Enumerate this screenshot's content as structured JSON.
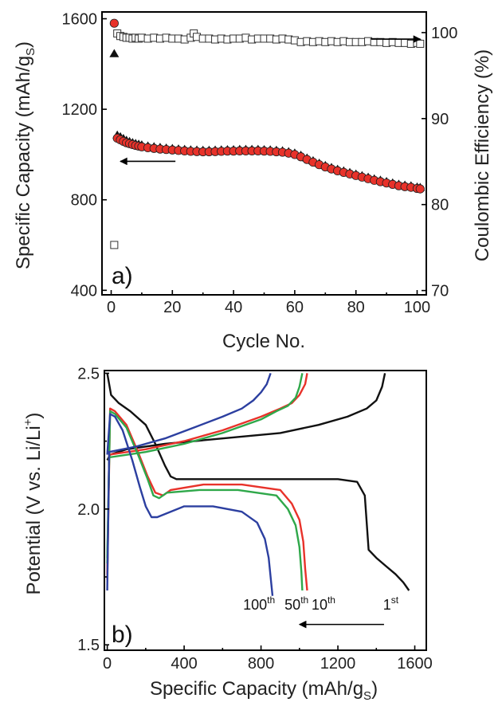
{
  "chart_data": [
    {
      "type": "scatter",
      "panel_label": "a)",
      "xlabel": "Cycle No.",
      "ylabel": "Specific Capacity (mAh/g",
      "ylabel_sub": "S",
      "ylabel_close": ")",
      "y2label": "Coulombic Efficiency (%)",
      "xlim": [
        -3,
        103
      ],
      "ylim": [
        380,
        1630
      ],
      "y2lim": [
        69.5,
        102.4
      ],
      "xticks": [
        "0",
        "20",
        "40",
        "60",
        "80",
        "100"
      ],
      "xtick_values": [
        0,
        20,
        40,
        60,
        80,
        100
      ],
      "yticks": [
        "400",
        "800",
        "1200",
        "1600"
      ],
      "ytick_values": [
        400,
        800,
        1200,
        1600
      ],
      "y2ticks": [
        "70",
        "80",
        "90",
        "100"
      ],
      "y2tick_values": [
        70,
        80,
        90,
        100
      ],
      "series": [
        {
          "marker": "circle",
          "color": "#e8322a",
          "axis": "left",
          "x": [
            1,
            2,
            3,
            4,
            5,
            6,
            7,
            8,
            9,
            10,
            12,
            14,
            16,
            18,
            20,
            22,
            24,
            26,
            28,
            30,
            32,
            34,
            36,
            38,
            40,
            42,
            44,
            46,
            48,
            50,
            52,
            54,
            56,
            58,
            60,
            62,
            64,
            66,
            68,
            70,
            72,
            74,
            76,
            78,
            80,
            82,
            84,
            86,
            88,
            90,
            92,
            94,
            96,
            98,
            100,
            101
          ],
          "values": [
            1580,
            1072,
            1065,
            1058,
            1052,
            1048,
            1044,
            1040,
            1037,
            1034,
            1030,
            1027,
            1024,
            1022,
            1020,
            1018,
            1016,
            1014,
            1013,
            1012,
            1012,
            1013,
            1014,
            1015,
            1015,
            1016,
            1016,
            1016,
            1016,
            1015,
            1014,
            1012,
            1010,
            1006,
            1000,
            990,
            978,
            966,
            955,
            945,
            936,
            928,
            921,
            914,
            907,
            900,
            893,
            886,
            880,
            874,
            868,
            862,
            858,
            855,
            850,
            848
          ]
        },
        {
          "marker": "triangle",
          "color": "#111111",
          "axis": "left",
          "x": [
            1,
            2,
            3,
            4,
            5,
            6,
            7,
            8,
            9,
            10,
            12,
            14,
            16,
            18,
            20,
            22,
            24,
            26,
            28,
            30,
            32,
            34,
            36,
            38,
            40,
            42,
            44,
            46,
            48,
            50,
            52,
            54,
            56,
            58,
            60,
            62,
            64,
            66,
            68,
            70,
            72,
            74,
            76,
            78,
            80,
            82,
            84,
            86,
            88,
            90,
            92,
            94,
            96,
            98,
            100,
            101
          ],
          "values": [
            1445,
            1085,
            1078,
            1070,
            1062,
            1057,
            1052,
            1048,
            1045,
            1042,
            1037,
            1034,
            1031,
            1028,
            1026,
            1024,
            1022,
            1020,
            1019,
            1018,
            1018,
            1019,
            1020,
            1021,
            1021,
            1022,
            1022,
            1022,
            1022,
            1021,
            1020,
            1018,
            1016,
            1012,
            1006,
            996,
            984,
            972,
            961,
            951,
            942,
            934,
            927,
            920,
            913,
            906,
            899,
            892,
            886,
            880,
            874,
            868,
            864,
            861,
            856,
            854
          ]
        },
        {
          "marker": "square",
          "color": "#ffffff",
          "axis": "right",
          "x": [
            1,
            2,
            3,
            4,
            5,
            6,
            7,
            8,
            9,
            10,
            12,
            14,
            16,
            18,
            20,
            22,
            24,
            26,
            27,
            28,
            30,
            32,
            34,
            36,
            38,
            40,
            42,
            44,
            46,
            48,
            50,
            52,
            54,
            56,
            58,
            60,
            62,
            64,
            66,
            68,
            70,
            72,
            74,
            76,
            78,
            80,
            82,
            84,
            86,
            88,
            90,
            92,
            94,
            96,
            98,
            100,
            101
          ],
          "values": [
            75.3,
            99.9,
            99.6,
            99.5,
            99.4,
            99.4,
            99.3,
            99.4,
            99.3,
            99.4,
            99.3,
            99.4,
            99.3,
            99.4,
            99.3,
            99.3,
            99.2,
            99.4,
            99.9,
            99.5,
            99.3,
            99.3,
            99.2,
            99.3,
            99.2,
            99.3,
            99.3,
            99.4,
            99.2,
            99.3,
            99.3,
            99.3,
            99.2,
            99.3,
            99.2,
            99.1,
            98.9,
            99.0,
            98.9,
            99.0,
            98.9,
            99.0,
            98.9,
            99.0,
            98.9,
            98.9,
            98.9,
            99.0,
            98.9,
            98.9,
            98.8,
            98.9,
            98.8,
            98.8,
            98.7,
            98.8,
            98.7
          ]
        }
      ],
      "arrows": [
        {
          "from": [
            21,
            970
          ],
          "to": [
            3,
            970
          ],
          "axis": "left"
        },
        {
          "from": [
            85,
            1510
          ],
          "to": [
            101,
            1510
          ],
          "axis": "left"
        }
      ]
    },
    {
      "type": "line",
      "panel_label": "b)",
      "xlabel": "Specific Capacity (mAh/g",
      "xlabel_sub": "S",
      "xlabel_close": ")",
      "ylabel": "Potential (V vs. Li/Li",
      "ylabel_sup": "+",
      "ylabel_close": ")",
      "xlim": [
        -15,
        1660
      ],
      "ylim": [
        1.48,
        2.51
      ],
      "xticks": [
        "0",
        "400",
        "800",
        "1200",
        "1600"
      ],
      "xtick_values": [
        0,
        400,
        800,
        1200,
        1600
      ],
      "yticks": [
        "1.5",
        "2.0",
        "2.5"
      ],
      "ytick_values": [
        1.5,
        2.0,
        2.5
      ],
      "curve_labels": [
        {
          "text": "100",
          "sup": "th",
          "x": 790,
          "y": 1.63
        },
        {
          "text": "50",
          "sup": "th",
          "x": 985,
          "y": 1.63
        },
        {
          "text": "10",
          "sup": "th",
          "x": 1125,
          "y": 1.63
        },
        {
          "text": "1",
          "sup": "st",
          "x": 1475,
          "y": 1.63
        }
      ],
      "arrow": {
        "from": [
          1440,
          1.575
        ],
        "to": [
          1000,
          1.575
        ]
      },
      "series": [
        {
          "name": "1st",
          "color": "#111111",
          "discharge": {
            "x": [
              0,
              20,
              60,
              120,
              200,
              250,
              300,
              330,
              360,
              400,
              600,
              800,
              1000,
              1200,
              1300,
              1340,
              1360,
              1400,
              1450,
              1500,
              1540,
              1570
            ],
            "y": [
              2.5,
              2.42,
              2.39,
              2.36,
              2.31,
              2.24,
              2.16,
              2.12,
              2.11,
              2.11,
              2.11,
              2.11,
              2.11,
              2.11,
              2.1,
              2.05,
              1.85,
              1.82,
              1.79,
              1.76,
              1.73,
              1.7
            ]
          },
          "charge": {
            "x": [
              0,
              15,
              100,
              300,
              600,
              900,
              1100,
              1250,
              1350,
              1400,
              1430,
              1445
            ],
            "y": [
              2.18,
              2.2,
              2.22,
              2.24,
              2.26,
              2.28,
              2.31,
              2.34,
              2.37,
              2.4,
              2.45,
              2.5
            ]
          }
        },
        {
          "name": "10th",
          "color": "#e8322a",
          "discharge": {
            "x": [
              0,
              15,
              40,
              100,
              160,
              210,
              250,
              290,
              330,
              500,
              700,
              900,
              960,
              1000,
              1020,
              1030,
              1040
            ],
            "y": [
              1.74,
              2.37,
              2.36,
              2.31,
              2.21,
              2.12,
              2.06,
              2.05,
              2.07,
              2.09,
              2.09,
              2.07,
              2.02,
              1.96,
              1.88,
              1.78,
              1.7
            ]
          },
          "charge": {
            "x": [
              0,
              10,
              200,
              400,
              600,
              800,
              900,
              960,
              1000,
              1030,
              1040
            ],
            "y": [
              1.76,
              2.2,
              2.22,
              2.25,
              2.29,
              2.34,
              2.37,
              2.39,
              2.42,
              2.46,
              2.5
            ]
          }
        },
        {
          "name": "50th",
          "color": "#2fa84a",
          "discharge": {
            "x": [
              0,
              15,
              40,
              100,
              160,
              210,
              240,
              270,
              310,
              480,
              680,
              880,
              940,
              980,
              1000,
              1010,
              1015
            ],
            "y": [
              1.8,
              2.36,
              2.35,
              2.3,
              2.2,
              2.11,
              2.05,
              2.04,
              2.06,
              2.07,
              2.07,
              2.05,
              2.0,
              1.94,
              1.86,
              1.77,
              1.7
            ]
          },
          "charge": {
            "x": [
              0,
              10,
              200,
              400,
              600,
              800,
              880,
              940,
              980,
              1000,
              1015
            ],
            "y": [
              1.82,
              2.19,
              2.21,
              2.24,
              2.28,
              2.33,
              2.36,
              2.38,
              2.41,
              2.45,
              2.5
            ]
          }
        },
        {
          "name": "100th",
          "color": "#2c3fa0",
          "discharge": {
            "x": [
              0,
              15,
              40,
              80,
              130,
              170,
              200,
              230,
              260,
              400,
              550,
              700,
              780,
              820,
              840,
              850,
              860
            ],
            "y": [
              2.2,
              2.35,
              2.34,
              2.29,
              2.18,
              2.08,
              2.01,
              1.97,
              1.97,
              2.01,
              2.01,
              1.99,
              1.95,
              1.89,
              1.82,
              1.75,
              1.68
            ]
          },
          "charge": {
            "x": [
              0,
              10,
              150,
              300,
              450,
              600,
              700,
              760,
              800,
              830,
              850
            ],
            "y": [
              1.7,
              2.21,
              2.23,
              2.26,
              2.3,
              2.34,
              2.37,
              2.4,
              2.43,
              2.46,
              2.5
            ]
          }
        }
      ]
    }
  ]
}
